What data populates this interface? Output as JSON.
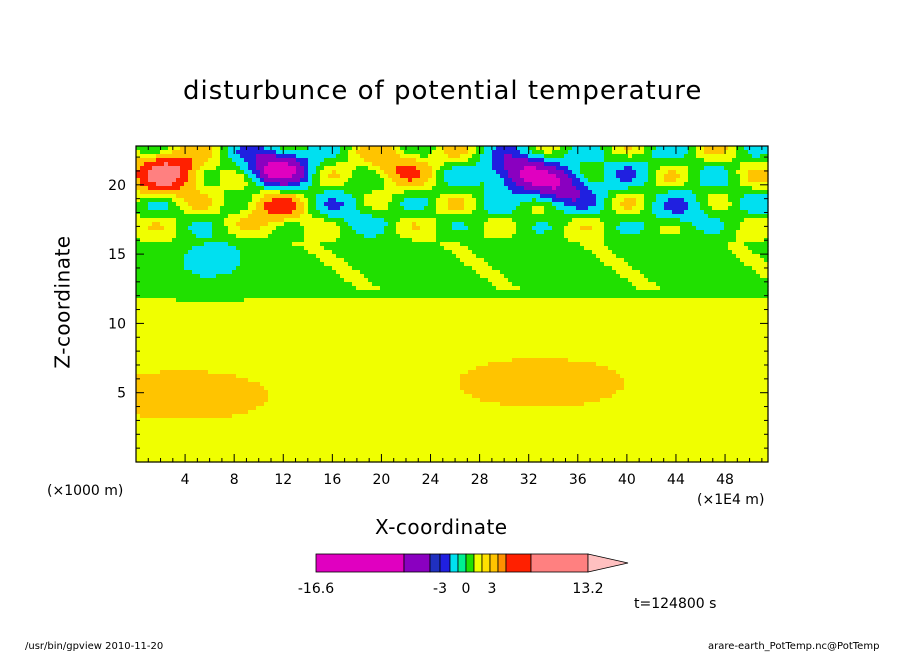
{
  "chart_data": {
    "type": "heatmap",
    "title": "disturbunce of potential temperature",
    "xlabel": "X-coordinate",
    "ylabel": "Z-coordinate",
    "x_scale_note": "(×1E4 m)",
    "y_scale_note": "(×1000 m)",
    "x_ticks": [
      "4",
      "8",
      "12",
      "16",
      "20",
      "24",
      "28",
      "32",
      "36",
      "40",
      "44",
      "48"
    ],
    "y_ticks": [
      "5",
      "10",
      "15",
      "20"
    ],
    "xlim": [
      0,
      51.5
    ],
    "ylim": [
      0,
      22.8
    ],
    "colorbar": {
      "labels": [
        "-16.6",
        "-3",
        "0",
        "3",
        "13.2"
      ],
      "range": [
        -16.6,
        13.2
      ]
    },
    "time_label": "t=124800 s",
    "features": [
      {
        "x": 2.5,
        "z": 20.8,
        "value": 12
      },
      {
        "x": 11.5,
        "z": 21.2,
        "value": -13
      },
      {
        "x": 21.5,
        "z": 21.4,
        "value": 5
      },
      {
        "x": 31.0,
        "z": 21.0,
        "value": -11
      },
      {
        "x": 34.5,
        "z": 19.8,
        "value": -10
      },
      {
        "x": 11.0,
        "z": 18.4,
        "value": 5
      },
      {
        "x": 18.0,
        "z": 18.3,
        "value": -3
      },
      {
        "x": 4.0,
        "z": 4.9,
        "value": 2
      },
      {
        "x": 33.0,
        "z": 5.6,
        "value": 2
      },
      {
        "x": 40.0,
        "z": 21.3,
        "value": -3
      },
      {
        "x": 45.0,
        "z": 18.2,
        "value": -4
      },
      {
        "x": 6.0,
        "z": 14.5,
        "value": -4
      }
    ]
  },
  "footer": {
    "left": "/usr/bin/gpview  2010-11-20",
    "right": "arare-earth_PotTemp.nc@PotTemp"
  },
  "colors": {
    "magenta": "#e000c0",
    "purple": "#8a00c0",
    "blue": "#2020e0",
    "cyan": "#00e0f0",
    "green": "#20e000",
    "yellow": "#f0ff00",
    "orange": "#ffc400",
    "red": "#ff2000",
    "salmon": "#ff8080",
    "pink": "#ffc0c0"
  }
}
